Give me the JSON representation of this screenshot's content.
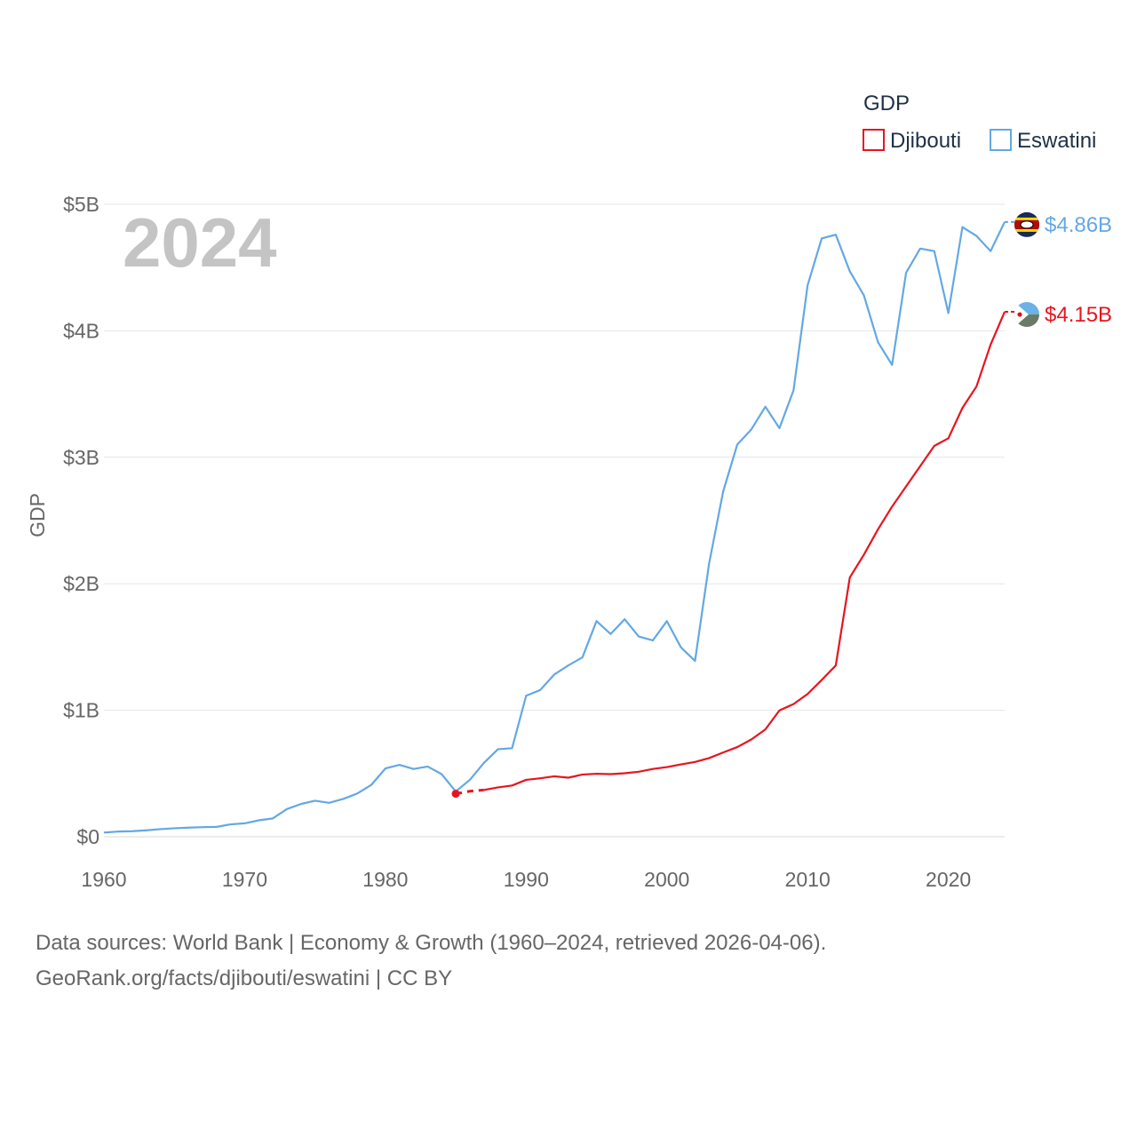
{
  "chart_data": {
    "type": "line",
    "year_label": "2024",
    "ylabel": "GDP",
    "xlim": [
      1960,
      2024
    ],
    "ylim": [
      0,
      5000000000
    ],
    "y_ticks": [
      {
        "value": 0,
        "label": "$0"
      },
      {
        "value": 1000000000,
        "label": "$1B"
      },
      {
        "value": 2000000000,
        "label": "$2B"
      },
      {
        "value": 3000000000,
        "label": "$3B"
      },
      {
        "value": 4000000000,
        "label": "$4B"
      },
      {
        "value": 5000000000,
        "label": "$5B"
      }
    ],
    "x_ticks": [
      {
        "value": 1960,
        "label": "1960"
      },
      {
        "value": 1970,
        "label": "1970"
      },
      {
        "value": 1980,
        "label": "1980"
      },
      {
        "value": 1990,
        "label": "1990"
      },
      {
        "value": 2000,
        "label": "2000"
      },
      {
        "value": 2010,
        "label": "2010"
      },
      {
        "value": 2020,
        "label": "2020"
      }
    ],
    "legend": {
      "title": "GDP",
      "position": "top-right"
    },
    "series": [
      {
        "name": "Djibouti",
        "color": "#e8141e",
        "end_label": "$4.15B",
        "icon": "djibouti-flag-icon",
        "x": [
          1985,
          1986,
          1987,
          1988,
          1989,
          1990,
          1991,
          1992,
          1993,
          1994,
          1995,
          1996,
          1997,
          1998,
          1999,
          2000,
          2001,
          2002,
          2003,
          2004,
          2005,
          2006,
          2007,
          2008,
          2009,
          2010,
          2011,
          2012,
          2013,
          2014,
          2015,
          2016,
          2017,
          2018,
          2019,
          2020,
          2021,
          2022,
          2023,
          2024
        ],
        "y": [
          340000000,
          360000000,
          370000000,
          390000000,
          405000000,
          450000000,
          462000000,
          478000000,
          467000000,
          492000000,
          498000000,
          495000000,
          502000000,
          514000000,
          536000000,
          551000000,
          572000000,
          591000000,
          622000000,
          666000000,
          709000000,
          769000000,
          849000000,
          999000000,
          1049000000,
          1129000000,
          1239000000,
          1354000000,
          2050000000,
          2230000000,
          2430000000,
          2610000000,
          2770000000,
          2930000000,
          3090000000,
          3150000000,
          3390000000,
          3560000000,
          3890000000,
          4150000000
        ],
        "dashed_until": 1987
      },
      {
        "name": "Eswatini",
        "color": "#63a8e4",
        "end_label": "$4.86B",
        "icon": "eswatini-flag-icon",
        "x": [
          1960,
          1961,
          1962,
          1963,
          1964,
          1965,
          1966,
          1967,
          1968,
          1969,
          1970,
          1971,
          1972,
          1973,
          1974,
          1975,
          1976,
          1977,
          1978,
          1979,
          1980,
          1981,
          1982,
          1983,
          1984,
          1985,
          1986,
          1987,
          1988,
          1989,
          1990,
          1991,
          1992,
          1993,
          1994,
          1995,
          1996,
          1997,
          1998,
          1999,
          2000,
          2001,
          2002,
          2003,
          2004,
          2005,
          2006,
          2007,
          2008,
          2009,
          2010,
          2011,
          2012,
          2013,
          2014,
          2015,
          2016,
          2017,
          2018,
          2019,
          2020,
          2021,
          2022,
          2023,
          2024
        ],
        "y": [
          33000000,
          41000000,
          44000000,
          51000000,
          60000000,
          67000000,
          72000000,
          76000000,
          78000000,
          98000000,
          106000000,
          130000000,
          145000000,
          219000000,
          259000000,
          285000000,
          268000000,
          299000000,
          342000000,
          410000000,
          540000000,
          568000000,
          536000000,
          555000000,
          495000000,
          358000000,
          450000000,
          584000000,
          692000000,
          700000000,
          1115000000,
          1160000000,
          1283000000,
          1355000000,
          1418000000,
          1705000000,
          1603000000,
          1720000000,
          1583000000,
          1552000000,
          1705000000,
          1497000000,
          1390000000,
          2160000000,
          2730000000,
          3100000000,
          3220000000,
          3400000000,
          3230000000,
          3530000000,
          4360000000,
          4730000000,
          4760000000,
          4470000000,
          4280000000,
          3910000000,
          3730000000,
          4460000000,
          4650000000,
          4630000000,
          4140000000,
          4820000000,
          4750000000,
          4630000000,
          4860000000
        ]
      }
    ]
  },
  "source": {
    "line1": "Data sources: World Bank | Economy & Growth (1960–2024, retrieved 2026-04-06).",
    "line2": "GeoRank.org/facts/djibouti/eswatini | CC BY"
  }
}
